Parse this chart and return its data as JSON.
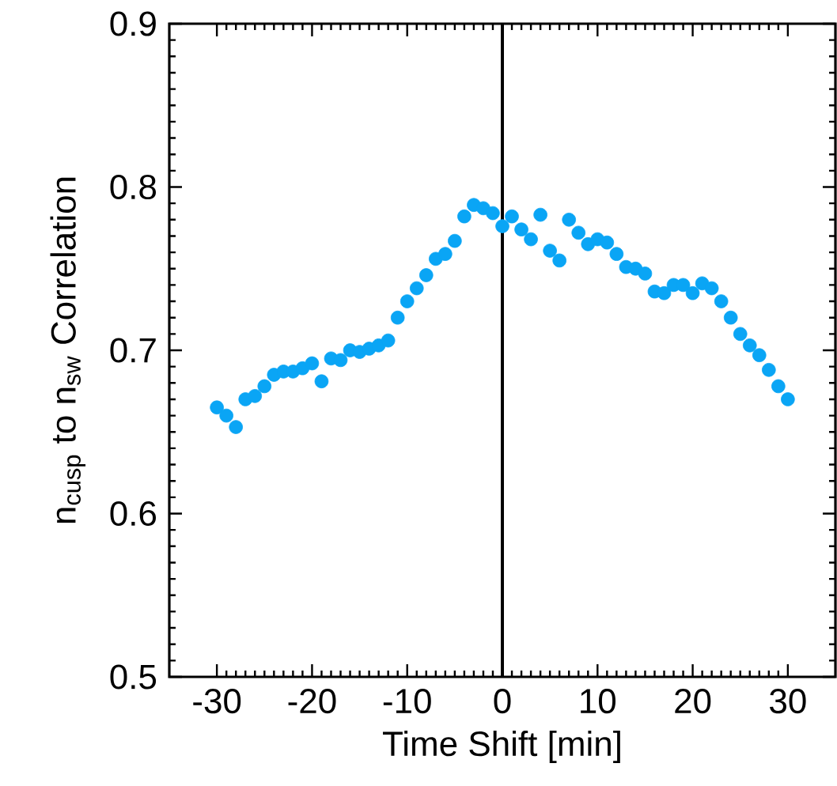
{
  "chart_data": {
    "type": "scatter",
    "xlabel": "Time Shift [min]",
    "ylabel": "n$_{cusp}$ to n$_{sw}$ Correlation",
    "x": [
      -30,
      -29,
      -28,
      -27,
      -26,
      -25,
      -24,
      -23,
      -22,
      -21,
      -20,
      -19,
      -18,
      -17,
      -16,
      -15,
      -14,
      -13,
      -12,
      -11,
      -10,
      -9,
      -8,
      -7,
      -6,
      -5,
      -4,
      -3,
      -2,
      -1,
      0,
      1,
      2,
      3,
      4,
      5,
      6,
      7,
      8,
      9,
      10,
      11,
      12,
      13,
      14,
      15,
      16,
      17,
      18,
      19,
      20,
      21,
      22,
      23,
      24,
      25,
      26,
      27,
      28,
      29,
      30
    ],
    "series": [
      {
        "color": "#0aa5f5",
        "values": [
          0.665,
          0.66,
          0.653,
          0.67,
          0.672,
          0.678,
          0.685,
          0.687,
          0.687,
          0.689,
          0.692,
          0.681,
          0.695,
          0.694,
          0.7,
          0.699,
          0.701,
          0.703,
          0.706,
          0.72,
          0.73,
          0.738,
          0.746,
          0.756,
          0.759,
          0.767,
          0.782,
          0.789,
          0.787,
          0.784,
          0.776,
          0.782,
          0.774,
          0.768,
          0.783,
          0.761,
          0.755,
          0.78,
          0.772,
          0.765,
          0.768,
          0.766,
          0.759,
          0.751,
          0.75,
          0.747,
          0.736,
          0.735,
          0.74,
          0.74,
          0.735,
          0.741,
          0.738,
          0.73,
          0.72,
          0.71,
          0.703,
          0.697,
          0.688,
          0.678,
          0.67
        ]
      }
    ],
    "xlim": [
      -35,
      35
    ],
    "xticks": [
      -30,
      -20,
      -10,
      0,
      10,
      20,
      30
    ],
    "ylim": [
      0.5,
      0.9
    ],
    "yticks": [
      0.5,
      0.6,
      0.7,
      0.8,
      0.9
    ],
    "ref_lines": [
      {
        "axis": "x",
        "value": 0,
        "color": "#000000"
      }
    ],
    "marker": "circle",
    "grid": false
  }
}
